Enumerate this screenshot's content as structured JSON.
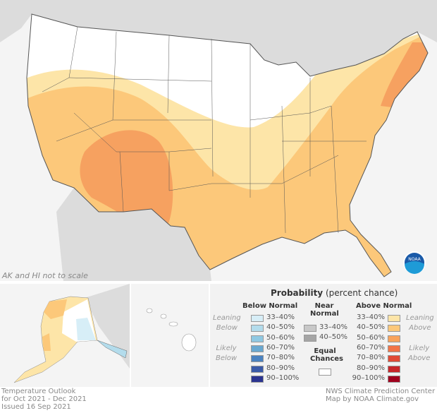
{
  "map": {
    "scale_note": "AK and HI not to scale",
    "logo": "NOAA"
  },
  "legend": {
    "title_bold": "Probability",
    "title_rest": "(percent chance)",
    "below": {
      "header": "Below Normal",
      "leaning": [
        "Leaning",
        "Below"
      ],
      "likely": [
        "Likely",
        "Below"
      ],
      "items": [
        {
          "label": "33–40%",
          "color": "#d7eef7"
        },
        {
          "label": "40–50%",
          "color": "#b3dcec"
        },
        {
          "label": "50–60%",
          "color": "#8fc8e2"
        },
        {
          "label": "60–70%",
          "color": "#69a8d0"
        },
        {
          "label": "70–80%",
          "color": "#4a82c0"
        },
        {
          "label": "80–90%",
          "color": "#3a5aa8"
        },
        {
          "label": "90–100%",
          "color": "#2b3490"
        }
      ]
    },
    "near": {
      "header": [
        "Near",
        "Normal"
      ],
      "items": [
        {
          "label": "33–40%",
          "color": "#c8c8c8"
        },
        {
          "label": "40–50%",
          "color": "#a5a5a5"
        }
      ]
    },
    "equal": {
      "header": [
        "Equal",
        "Chances"
      ],
      "color": "#ffffff"
    },
    "above": {
      "header": "Above Normal",
      "leaning": [
        "Leaning",
        "Above"
      ],
      "likely": [
        "Likely",
        "Above"
      ],
      "items": [
        {
          "label": "33–40%",
          "color": "#fde5a8"
        },
        {
          "label": "40–50%",
          "color": "#fcc87a"
        },
        {
          "label": "50–60%",
          "color": "#f9a35b"
        },
        {
          "label": "60–70%",
          "color": "#f27447"
        },
        {
          "label": "70–80%",
          "color": "#e04a35"
        },
        {
          "label": "80–90%",
          "color": "#c7262a"
        },
        {
          "label": "90–100%",
          "color": "#a0001e"
        }
      ]
    }
  },
  "footer": {
    "left": [
      "Temperature Outlook",
      "for Oct 2021 - Dec 2021",
      "Issued 16 Sep 2021"
    ],
    "right": [
      "NWS Climate Prediction Center",
      "Map by NOAA Climate.gov"
    ]
  }
}
